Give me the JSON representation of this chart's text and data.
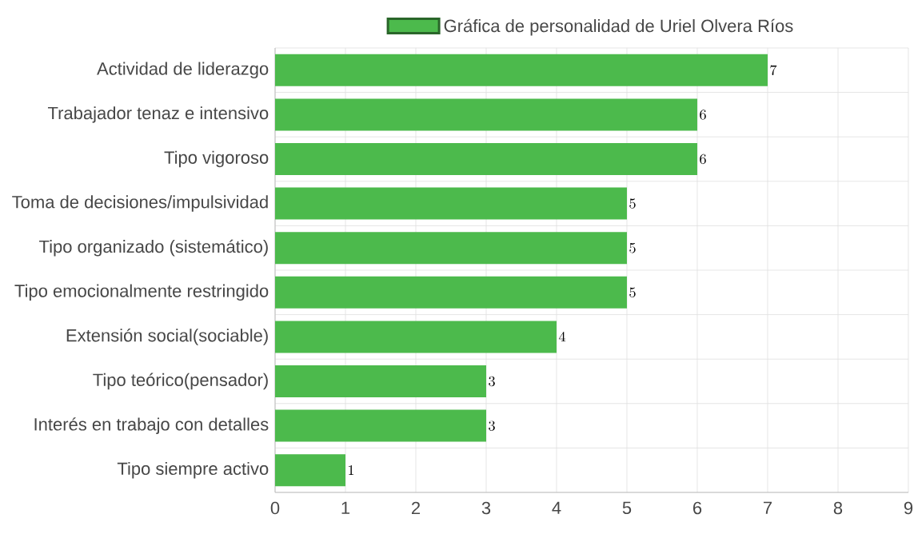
{
  "chart_data": {
    "type": "bar",
    "orientation": "horizontal",
    "categories": [
      "Actividad de liderazgo",
      "Trabajador tenaz e intensivo",
      "Tipo vigoroso",
      "Toma de decisiones/impulsividad",
      "Tipo organizado (sistemático)",
      "Tipo emocionalmente restringido",
      "Extensión social(sociable)",
      "Tipo teórico(pensador)",
      "Interés en trabajo con detalles",
      "Tipo siempre activo"
    ],
    "series": [
      {
        "name": "Gráfica de personalidad de Uriel Olvera Ríos",
        "color": "#4cba4c",
        "values": [
          7,
          6,
          6,
          5,
          5,
          5,
          4,
          3,
          3,
          1
        ]
      }
    ],
    "xlim": [
      0,
      9
    ],
    "xticks": [
      0,
      1,
      2,
      3,
      4,
      5,
      6,
      7,
      8,
      9
    ],
    "grid": true,
    "legend": "top",
    "data_labels": true
  }
}
